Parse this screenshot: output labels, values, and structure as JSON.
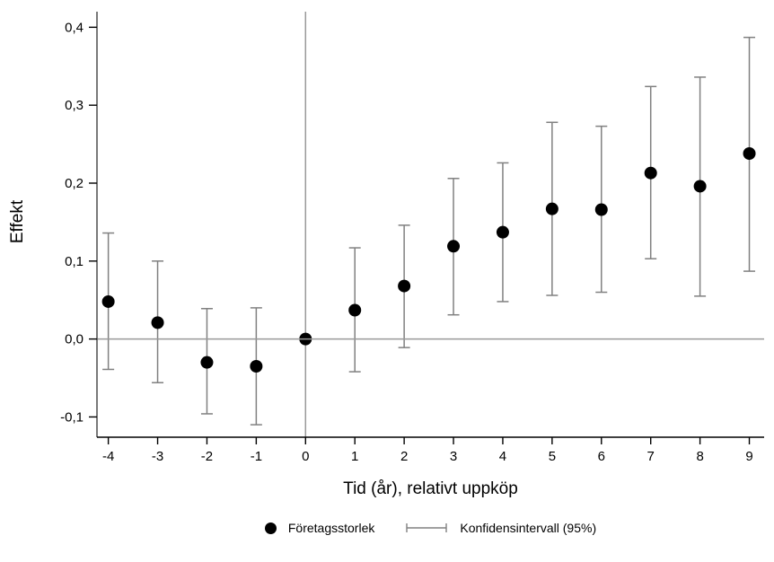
{
  "figure": {
    "background": "#ffffff"
  },
  "chart_data": {
    "type": "scatter",
    "title": "",
    "xlabel": "Tid (år), relativt uppköp",
    "ylabel": "Effekt",
    "x": [
      -4,
      -3,
      -2,
      -1,
      0,
      1,
      2,
      3,
      4,
      5,
      6,
      7,
      8,
      9
    ],
    "series": [
      {
        "name": "Företagsstorlek",
        "values": [
          0.048,
          0.021,
          -0.03,
          -0.035,
          0.0,
          0.037,
          0.068,
          0.119,
          0.137,
          0.167,
          0.166,
          0.213,
          0.196,
          0.238
        ],
        "ci_low": [
          -0.039,
          -0.056,
          -0.096,
          -0.11,
          null,
          -0.042,
          -0.011,
          0.031,
          0.048,
          0.056,
          0.06,
          0.103,
          0.055,
          0.087
        ],
        "ci_high": [
          0.136,
          0.1,
          0.039,
          0.04,
          null,
          0.117,
          0.146,
          0.206,
          0.226,
          0.278,
          0.273,
          0.324,
          0.336,
          0.387
        ]
      }
    ],
    "x_tick_labels": [
      "-4",
      "-3",
      "-2",
      "-1",
      "0",
      "1",
      "2",
      "3",
      "4",
      "5",
      "6",
      "7",
      "8",
      "9"
    ],
    "y_ticks": [
      {
        "value": 0.4,
        "label": "0,4"
      },
      {
        "value": 0.3,
        "label": "0,3"
      },
      {
        "value": 0.2,
        "label": "0,2"
      },
      {
        "value": 0.1,
        "label": "0,1"
      },
      {
        "value": 0.0,
        "label": "0,0"
      },
      {
        "value": -0.1,
        "label": "-0,1"
      }
    ],
    "ylim": [
      -0.126,
      0.42
    ],
    "xlim": [
      -4.23,
      9.3
    ],
    "grid": "off",
    "reference_lines": {
      "horizontal_y": 0,
      "vertical_x": 0
    },
    "legend_position": "bottom-center",
    "legend": [
      {
        "label": "Företagsstorlek",
        "marker": "dot"
      },
      {
        "label": "Konfidensintervall (95%)",
        "marker": "errorbar"
      }
    ],
    "marker_radius": 7,
    "colors": {
      "marker": "#000000",
      "ci": "#808080",
      "reference_line": "#999999",
      "y_axis": "#4d4d4d",
      "x_axis": "#000000",
      "tick": "#000000",
      "text": "#000000"
    }
  }
}
